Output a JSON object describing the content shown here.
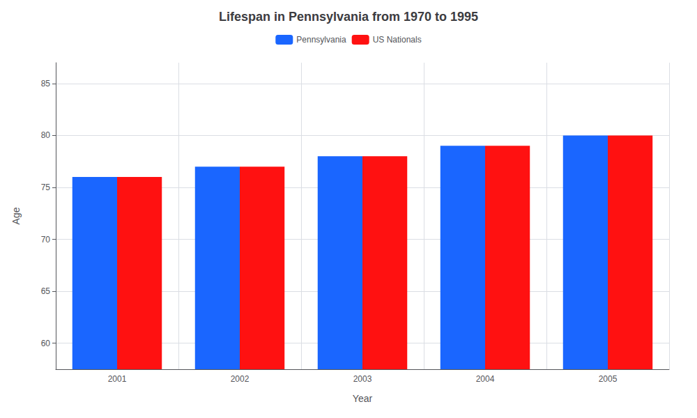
{
  "chart_data": {
    "type": "bar",
    "title": "Lifespan in Pennsylvania from 1970 to 1995",
    "xlabel": "Year",
    "ylabel": "Age",
    "categories": [
      2001,
      2002,
      2003,
      2004,
      2005
    ],
    "series": [
      {
        "name": "Pennsylvania",
        "color": "#1a66ff",
        "values": [
          76,
          77,
          78,
          79,
          80
        ]
      },
      {
        "name": "US Nationals",
        "color": "#ff1111",
        "values": [
          76,
          77,
          78,
          79,
          80
        ]
      }
    ],
    "ylim": [
      57.5,
      87
    ],
    "yticks": [
      60,
      65,
      70,
      75,
      80,
      85
    ],
    "grid": true,
    "legend": "top"
  }
}
